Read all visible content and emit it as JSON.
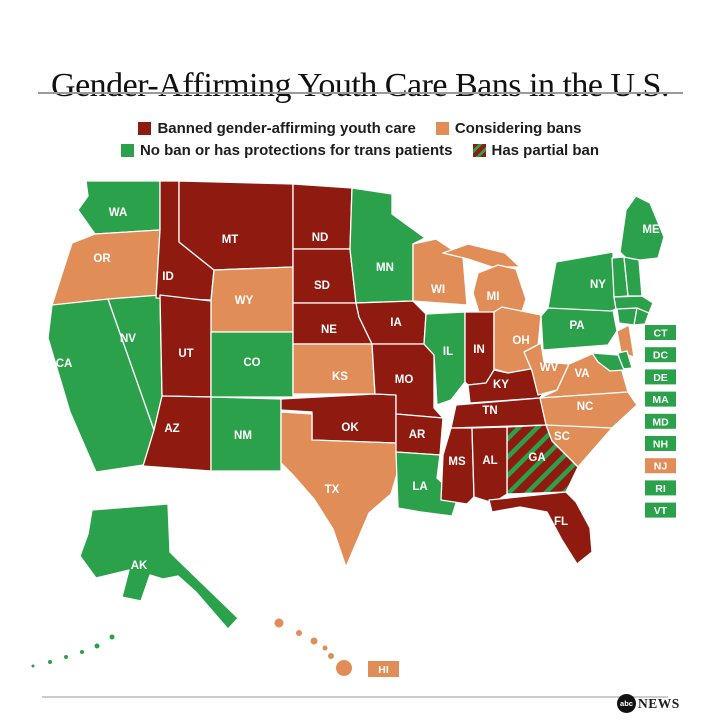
{
  "title": "Gender-Affirming Youth Care Bans in the U.S.",
  "legend": {
    "items": [
      {
        "label": "Banned gender-affirming youth care",
        "status": "banned"
      },
      {
        "label": "Considering bans",
        "status": "considering"
      },
      {
        "label": "No ban or has protections for trans patients",
        "status": "no_ban"
      },
      {
        "label": "Has partial ban",
        "status": "partial"
      }
    ]
  },
  "colors": {
    "banned": "#8e1a10",
    "considering": "#e08d58",
    "no_ban": "#2ba14b",
    "partial_base": "#8e1a10",
    "partial_stripe": "#2ba14b",
    "label_text": "#ffffff"
  },
  "map": {
    "states": [
      {
        "code": "WA",
        "status": "no_ban"
      },
      {
        "code": "OR",
        "status": "considering"
      },
      {
        "code": "CA",
        "status": "no_ban"
      },
      {
        "code": "NV",
        "status": "no_ban"
      },
      {
        "code": "ID",
        "status": "banned"
      },
      {
        "code": "MT",
        "status": "banned"
      },
      {
        "code": "WY",
        "status": "considering"
      },
      {
        "code": "UT",
        "status": "banned"
      },
      {
        "code": "CO",
        "status": "no_ban"
      },
      {
        "code": "AZ",
        "status": "banned"
      },
      {
        "code": "NM",
        "status": "no_ban"
      },
      {
        "code": "ND",
        "status": "banned"
      },
      {
        "code": "SD",
        "status": "banned"
      },
      {
        "code": "NE",
        "status": "banned"
      },
      {
        "code": "KS",
        "status": "considering"
      },
      {
        "code": "OK",
        "status": "banned"
      },
      {
        "code": "TX",
        "status": "considering"
      },
      {
        "code": "MN",
        "status": "no_ban"
      },
      {
        "code": "IA",
        "status": "banned"
      },
      {
        "code": "MO",
        "status": "banned"
      },
      {
        "code": "AR",
        "status": "banned"
      },
      {
        "code": "LA",
        "status": "no_ban"
      },
      {
        "code": "WI",
        "status": "considering"
      },
      {
        "code": "IL",
        "status": "no_ban"
      },
      {
        "code": "MS",
        "status": "banned"
      },
      {
        "code": "MI",
        "status": "considering"
      },
      {
        "code": "IN",
        "status": "banned"
      },
      {
        "code": "OH",
        "status": "considering"
      },
      {
        "code": "KY",
        "status": "banned"
      },
      {
        "code": "TN",
        "status": "banned"
      },
      {
        "code": "WV",
        "status": "considering"
      },
      {
        "code": "VA",
        "status": "considering"
      },
      {
        "code": "NC",
        "status": "considering"
      },
      {
        "code": "SC",
        "status": "considering"
      },
      {
        "code": "GA",
        "status": "partial"
      },
      {
        "code": "AL",
        "status": "banned"
      },
      {
        "code": "FL",
        "status": "banned"
      },
      {
        "code": "PA",
        "status": "no_ban"
      },
      {
        "code": "NY",
        "status": "no_ban"
      },
      {
        "code": "ME",
        "status": "no_ban"
      },
      {
        "code": "VT",
        "status": "no_ban"
      },
      {
        "code": "NH",
        "status": "no_ban"
      },
      {
        "code": "MA",
        "status": "no_ban"
      },
      {
        "code": "CT",
        "status": "no_ban"
      },
      {
        "code": "RI",
        "status": "no_ban"
      },
      {
        "code": "NJ",
        "status": "considering"
      },
      {
        "code": "DE",
        "status": "no_ban"
      },
      {
        "code": "MD",
        "status": "no_ban"
      },
      {
        "code": "AK",
        "status": "no_ban"
      },
      {
        "code": "HI",
        "status": "considering"
      }
    ]
  },
  "side_list": [
    {
      "code": "CT",
      "status": "no_ban"
    },
    {
      "code": "DC",
      "status": "no_ban"
    },
    {
      "code": "DE",
      "status": "no_ban"
    },
    {
      "code": "MA",
      "status": "no_ban"
    },
    {
      "code": "MD",
      "status": "no_ban"
    },
    {
      "code": "NH",
      "status": "no_ban"
    },
    {
      "code": "NJ",
      "status": "considering"
    },
    {
      "code": "RI",
      "status": "no_ban"
    },
    {
      "code": "VT",
      "status": "no_ban"
    }
  ],
  "footer": {
    "logo_circle_text": "abc",
    "logo_news_text": "NEWS"
  }
}
